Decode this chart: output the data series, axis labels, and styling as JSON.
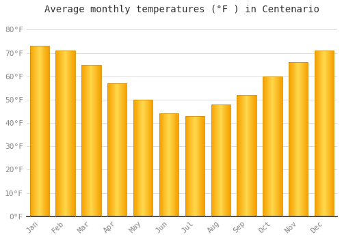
{
  "title": "Average monthly temperatures (°F ) in Centenario",
  "months": [
    "Jan",
    "Feb",
    "Mar",
    "Apr",
    "May",
    "Jun",
    "Jul",
    "Aug",
    "Sep",
    "Oct",
    "Nov",
    "Dec"
  ],
  "values": [
    73,
    71,
    65,
    57,
    50,
    44,
    43,
    48,
    52,
    60,
    66,
    71
  ],
  "bar_color_center": "#FFD84D",
  "bar_color_edge": "#F5A000",
  "background_color": "#FFFFFF",
  "grid_color": "#DDDDDD",
  "ylim": [
    0,
    85
  ],
  "yticks": [
    0,
    10,
    20,
    30,
    40,
    50,
    60,
    70,
    80
  ],
  "ytick_labels": [
    "0°F",
    "10°F",
    "20°F",
    "30°F",
    "40°F",
    "50°F",
    "60°F",
    "70°F",
    "80°F"
  ],
  "title_fontsize": 10,
  "tick_fontsize": 8,
  "font_family": "monospace",
  "bar_width": 0.75
}
